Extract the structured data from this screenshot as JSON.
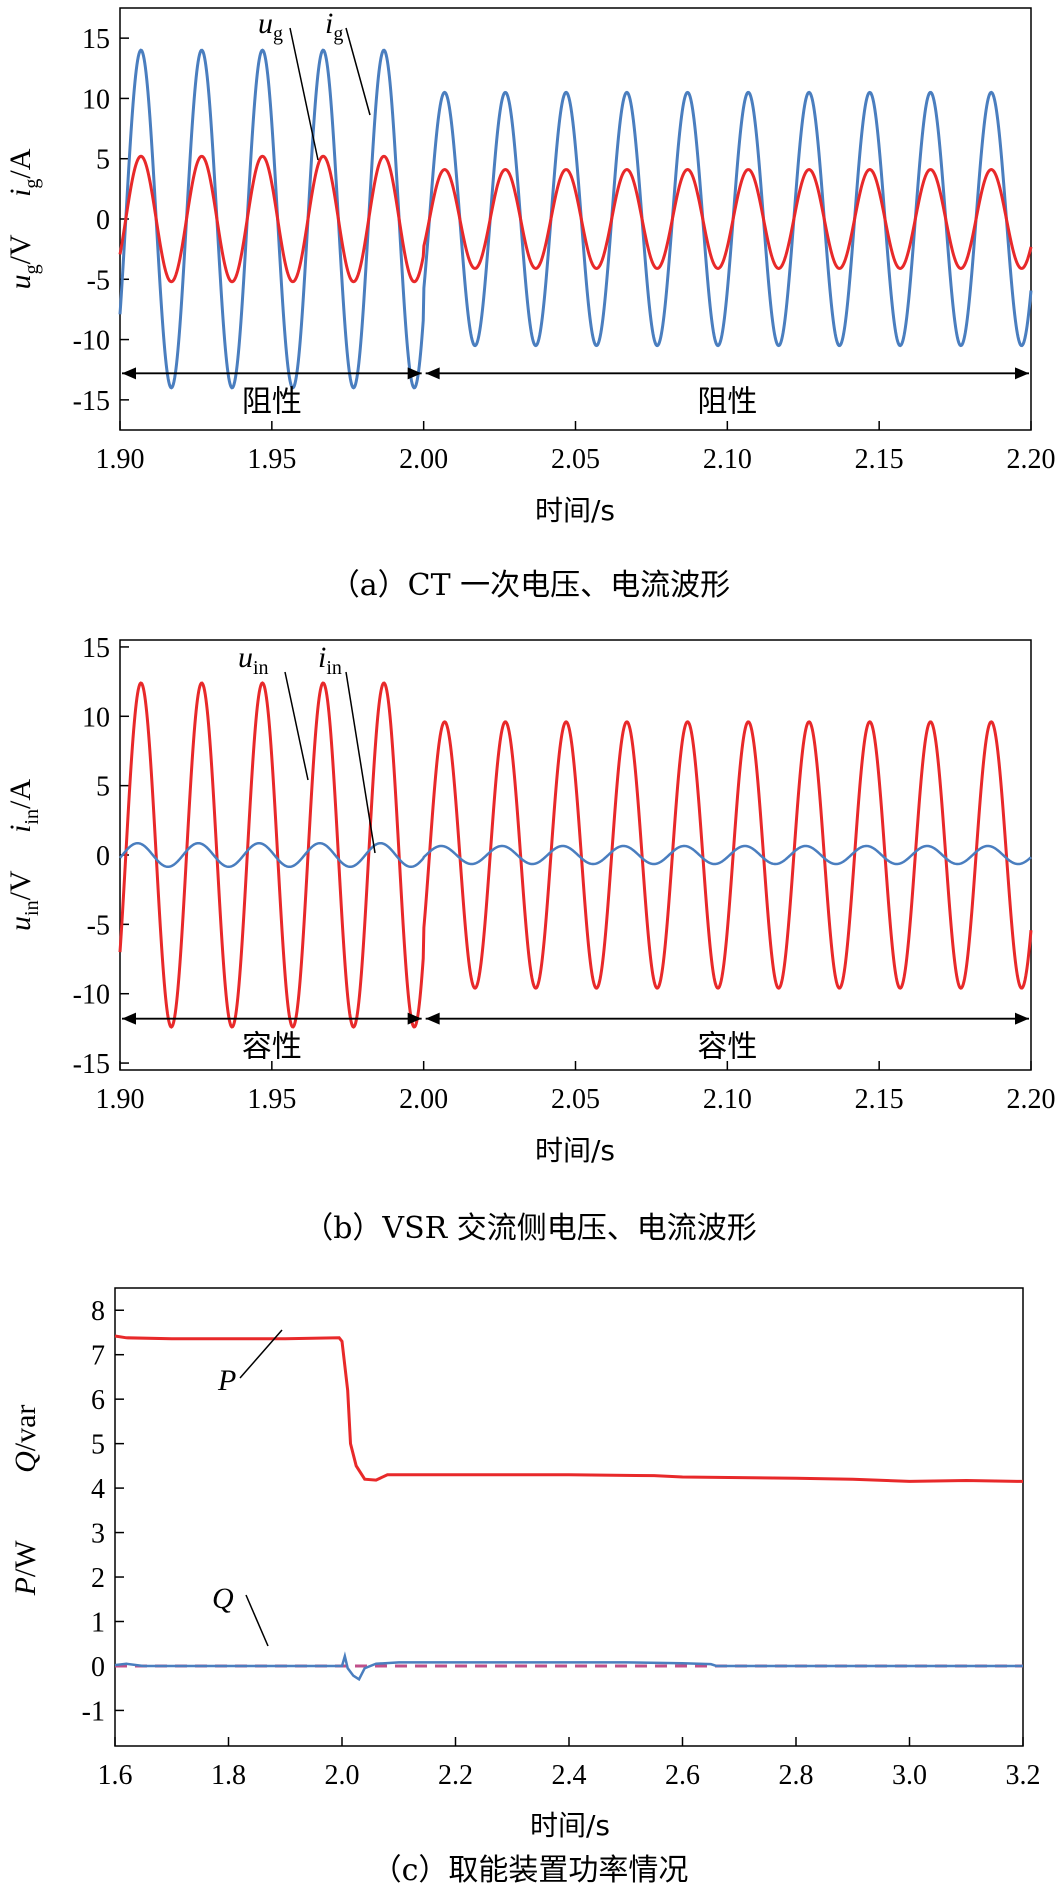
{
  "chart_data": [
    {
      "type": "line",
      "caption": "（a）CT 一次电压、电流波形",
      "xlabel": "时间/s",
      "ylabel_top": "i",
      "ylabel_top_sub": "g",
      "ylabel_top_unit": "/A",
      "ylabel_bottom": "u",
      "ylabel_bottom_sub": "g",
      "ylabel_bottom_unit": "/V",
      "xlim": [
        1.9,
        2.2
      ],
      "ylim": [
        -17.5,
        17.5
      ],
      "xticks": [
        "1.90",
        "1.95",
        "2.00",
        "2.05",
        "2.10",
        "2.15",
        "2.20"
      ],
      "xtick_values": [
        1.9,
        1.95,
        2.0,
        2.05,
        2.1,
        2.15,
        2.2
      ],
      "yticks": [
        "15",
        "10",
        "5",
        "0",
        "-5",
        "-10",
        "-15"
      ],
      "ytick_values": [
        15,
        10,
        5,
        0,
        -5,
        -10,
        -15
      ],
      "series": [
        {
          "name": "u",
          "sub": "g",
          "color": "#4a7ebf",
          "kind": "sine",
          "freq": 50,
          "amp_before": 14.0,
          "amp_after": 10.5,
          "switch": 2.0
        },
        {
          "name": "i",
          "sub": "g",
          "color": "#e8292a",
          "kind": "sine",
          "freq": 50,
          "amp_before": 5.2,
          "amp_after": 4.1,
          "switch": 2.0
        }
      ],
      "regions": [
        {
          "label": "阻性",
          "x0": 1.9,
          "x1": 2.0,
          "y": -12.8
        },
        {
          "label": "阻性",
          "x0": 2.0,
          "x1": 2.2,
          "y": -12.8
        }
      ]
    },
    {
      "type": "line",
      "caption": "（b）VSR 交流侧电压、电流波形",
      "xlabel": "时间/s",
      "ylabel_top": "i",
      "ylabel_top_sub": "in",
      "ylabel_top_unit": "/A",
      "ylabel_bottom": "u",
      "ylabel_bottom_sub": "in",
      "ylabel_bottom_unit": "/V",
      "xlim": [
        1.9,
        2.2
      ],
      "ylim": [
        -15.5,
        15.5
      ],
      "xticks": [
        "1.90",
        "1.95",
        "2.00",
        "2.05",
        "2.10",
        "2.15",
        "2.20"
      ],
      "xtick_values": [
        1.9,
        1.95,
        2.0,
        2.05,
        2.1,
        2.15,
        2.2
      ],
      "yticks": [
        "15",
        "10",
        "5",
        "0",
        "-5",
        "-10",
        "-15"
      ],
      "ytick_values": [
        15,
        10,
        5,
        0,
        -5,
        -10,
        -15
      ],
      "series": [
        {
          "name": "u",
          "sub": "in",
          "color": "#e8292a",
          "kind": "sine",
          "freq": 50,
          "amp_before": 12.4,
          "amp_after": 9.6,
          "switch": 2.0
        },
        {
          "name": "i",
          "sub": "in",
          "color": "#4a7ebf",
          "kind": "sine",
          "freq": 50,
          "phase": 0.35,
          "amp_before": 0.85,
          "amp_after": 0.65,
          "switch": 2.0
        }
      ],
      "regions": [
        {
          "label": "容性",
          "x0": 1.9,
          "x1": 2.0,
          "y": -11.8
        },
        {
          "label": "容性",
          "x0": 2.0,
          "x1": 2.2,
          "y": -11.8
        }
      ]
    },
    {
      "type": "line",
      "caption": "（c）取能装置功率情况",
      "xlabel": "时间/s",
      "ylabel_top": "Q",
      "ylabel_top_unit": "/var",
      "ylabel_bottom": "P",
      "ylabel_bottom_unit": "/W",
      "xlim": [
        1.6,
        3.2
      ],
      "ylim": [
        -1.8,
        8.5
      ],
      "xticks": [
        "1.6",
        "1.8",
        "2.0",
        "2.2",
        "2.4",
        "2.6",
        "2.8",
        "3.0",
        "3.2"
      ],
      "xtick_values": [
        1.6,
        1.8,
        2.0,
        2.2,
        2.4,
        2.6,
        2.8,
        3.0,
        3.2
      ],
      "yticks": [
        "8",
        "7",
        "6",
        "5",
        "4",
        "3",
        "2",
        "1",
        "0",
        "-1"
      ],
      "ytick_values": [
        8,
        7,
        6,
        5,
        4,
        3,
        2,
        1,
        0,
        -1
      ],
      "series": [
        {
          "name": "P",
          "color": "#e8292a",
          "points": [
            [
              1.6,
              7.42
            ],
            [
              1.62,
              7.38
            ],
            [
              1.7,
              7.36
            ],
            [
              1.8,
              7.36
            ],
            [
              1.9,
              7.36
            ],
            [
              1.995,
              7.38
            ],
            [
              2.0,
              7.3
            ],
            [
              2.01,
              6.2
            ],
            [
              2.015,
              5.0
            ],
            [
              2.025,
              4.5
            ],
            [
              2.04,
              4.2
            ],
            [
              2.06,
              4.18
            ],
            [
              2.08,
              4.3
            ],
            [
              2.2,
              4.3
            ],
            [
              2.4,
              4.3
            ],
            [
              2.55,
              4.28
            ],
            [
              2.6,
              4.25
            ],
            [
              2.8,
              4.22
            ],
            [
              2.9,
              4.2
            ],
            [
              3.0,
              4.15
            ],
            [
              3.1,
              4.17
            ],
            [
              3.2,
              4.15
            ]
          ]
        },
        {
          "name": "Q",
          "color": "#4a7ebf",
          "points": [
            [
              1.6,
              0.02
            ],
            [
              1.62,
              0.05
            ],
            [
              1.65,
              0.0
            ],
            [
              2.0,
              0.0
            ],
            [
              2.005,
              0.22
            ],
            [
              2.01,
              -0.05
            ],
            [
              2.02,
              -0.22
            ],
            [
              2.03,
              -0.3
            ],
            [
              2.04,
              -0.05
            ],
            [
              2.06,
              0.05
            ],
            [
              2.1,
              0.08
            ],
            [
              2.5,
              0.08
            ],
            [
              2.6,
              0.06
            ],
            [
              2.65,
              0.04
            ],
            [
              2.66,
              0.0
            ],
            [
              3.2,
              0.0
            ]
          ]
        },
        {
          "name": "reference",
          "color": "#c0508a",
          "dashed": true,
          "points": [
            [
              1.6,
              0.0
            ],
            [
              3.2,
              0.0
            ]
          ]
        }
      ]
    }
  ],
  "annotations": {
    "a_u": "u",
    "a_u_sub": "g",
    "a_i": "i",
    "a_i_sub": "g",
    "b_u": "u",
    "b_u_sub": "in",
    "b_i": "i",
    "b_i_sub": "in",
    "c_P": "P",
    "c_Q": "Q"
  }
}
